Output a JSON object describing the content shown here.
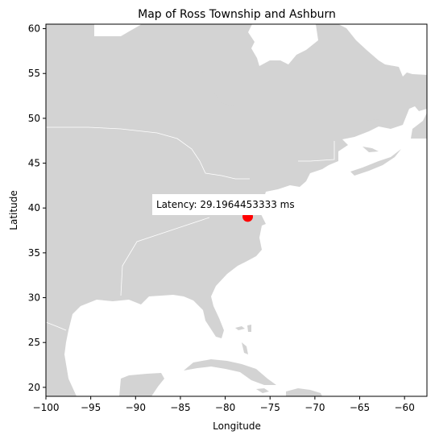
{
  "chart_data": {
    "type": "scatter",
    "title": "Map of Ross Township and Ashburn",
    "xlabel": "Longitude",
    "ylabel": "Latitude",
    "xlim": [
      -100,
      -57.5
    ],
    "ylim": [
      19,
      60.5
    ],
    "xticks": [
      -100,
      -95,
      -90,
      -85,
      -80,
      -75,
      -70,
      -65,
      -60
    ],
    "yticks": [
      20,
      25,
      30,
      35,
      40,
      45,
      50,
      55,
      60
    ],
    "xtick_labels": [
      "−100",
      "−95",
      "−90",
      "−85",
      "−80",
      "−75",
      "−70",
      "−65",
      "−60"
    ],
    "ytick_labels": [
      "20",
      "25",
      "30",
      "35",
      "40",
      "45",
      "50",
      "55",
      "60"
    ],
    "grid": false,
    "points": [
      {
        "x": -77.49,
        "y": 39.04,
        "color": "#ff0000"
      }
    ],
    "annotations": [
      {
        "text": "Latency: 29.1964453333 ms",
        "x": -87.9,
        "y": 40.4
      }
    ],
    "land_color": "#d3d3d3",
    "border_color": "#ffffff"
  }
}
